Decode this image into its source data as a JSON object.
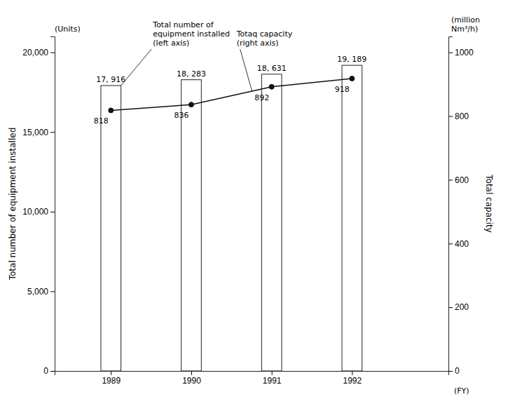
{
  "chart_data": {
    "type": "bar",
    "x": [
      1989,
      1990,
      1991,
      1992
    ],
    "xlim": [
      1988.3,
      1993.2
    ],
    "xticks": [
      1989,
      1990,
      1991,
      1992
    ],
    "xlabel": "(FY)",
    "ylabel": "Total number of equipment installed",
    "y2label": "Total capacity",
    "ylim": [
      0,
      21000
    ],
    "yticks": [
      0,
      {
        "value": 5000,
        "label": "5,000"
      },
      {
        "value": 10000,
        "label": "10,000"
      },
      {
        "value": 15000,
        "label": "15,000"
      },
      {
        "value": 20000,
        "label": "20,000"
      }
    ],
    "y2lim": [
      0,
      1050
    ],
    "y2ticks": [
      0,
      200,
      400,
      600,
      800,
      1000
    ],
    "series": [
      {
        "type": "bar",
        "color": "#ffffff",
        "values": [
          17916,
          18283,
          18631,
          19189
        ],
        "value_labels": [
          "17, 916",
          "18, 283",
          "18, 631",
          "19, 189"
        ]
      },
      {
        "type": "line",
        "axis": "y2",
        "color": "#111111",
        "marker": "circle",
        "values": [
          818,
          836,
          892,
          918
        ]
      }
    ],
    "data_labels": true,
    "grid": false,
    "annotations": [
      "(Units)",
      "(million\nNm³/h)",
      "Total number of\nequipment installed\n(left axis)",
      "Totaq capacity\n(right axis)"
    ]
  }
}
